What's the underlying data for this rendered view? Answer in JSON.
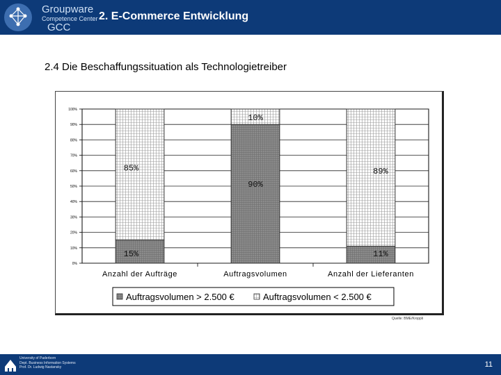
{
  "header": {
    "logo_line1": "Groupware",
    "logo_line2": "Competence Center",
    "logo_line3": "GCC",
    "title": "2. E-Commerce Entwicklung"
  },
  "subtitle": "2.4  Die Beschaffungssituation als Technologietreiber",
  "chart_data": {
    "type": "bar",
    "stacked": true,
    "percent_stacked": true,
    "categories": [
      "Anzahl der Aufträge",
      "Auftragsvolumen",
      "Anzahl der Lieferanten"
    ],
    "series": [
      {
        "name": "Auftragsvolumen > 2.500 €",
        "values": [
          15,
          90,
          11
        ],
        "labels": [
          "15%",
          "90%",
          "11%"
        ],
        "color": "#8c8c8c"
      },
      {
        "name": "Auftragsvolumen < 2.500 €",
        "values": [
          85,
          10,
          89
        ],
        "labels": [
          "85%",
          "10%",
          "89%"
        ],
        "color": "#e8e8e8"
      }
    ],
    "y_ticks": [
      "0%",
      "10%",
      "20%",
      "30%",
      "40%",
      "50%",
      "60%",
      "70%",
      "80%",
      "90%",
      "100%"
    ],
    "ylim": [
      0,
      100
    ],
    "grid": true,
    "legend_position": "bottom"
  },
  "source": "Quelle: BME/Kroppli",
  "footer": {
    "line1": "University of Paderborn",
    "line2": "Dept. Business Information Systems",
    "line3": "Prof. Dr. Ludwig Nastansky",
    "page_number": "11"
  }
}
